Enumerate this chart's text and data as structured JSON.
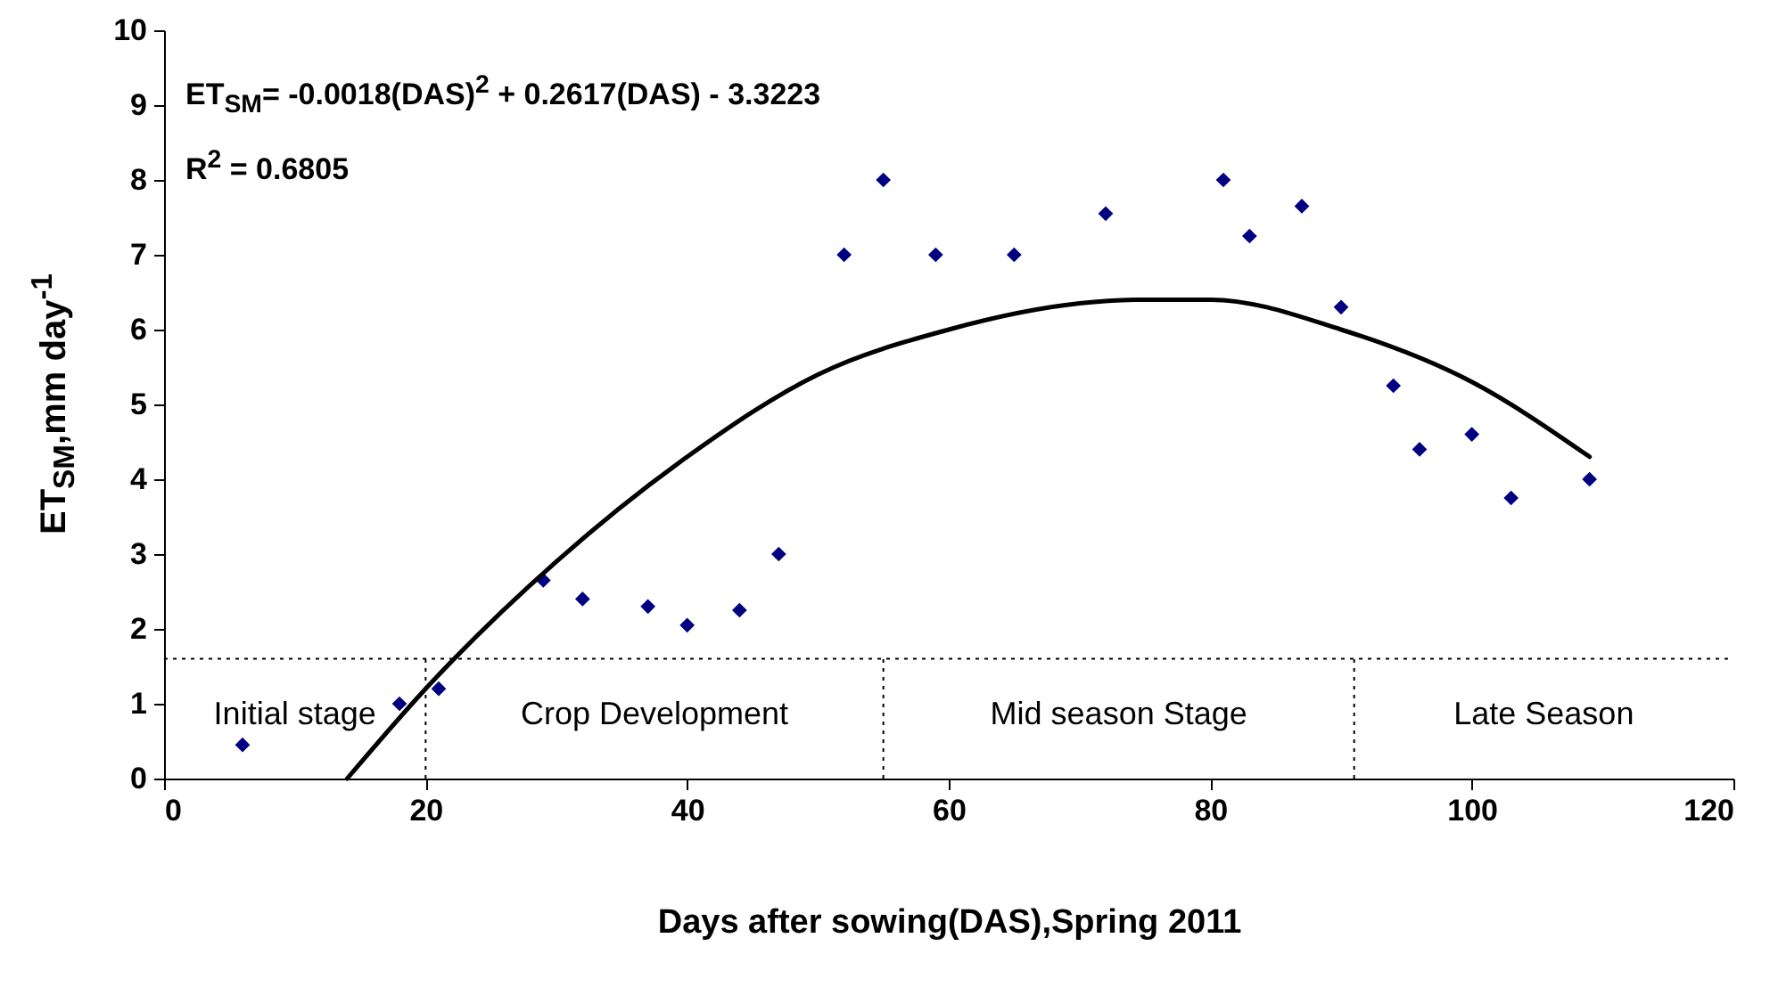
{
  "chart_data": {
    "type": "scatter",
    "xlabel": "Days after sowing(DAS),Spring 2011",
    "ylabel": "ET$_{SM}$,mm day$^{-1}$",
    "xlim": [
      0,
      120
    ],
    "xticks": [
      0,
      20,
      40,
      60,
      80,
      100,
      120
    ],
    "ylim": [
      0,
      10
    ],
    "yticks": [
      0,
      1,
      2,
      3,
      4,
      5,
      6,
      7,
      8,
      9,
      10
    ],
    "grid": false,
    "series": [
      {
        "type": "scatter",
        "color": "#000080",
        "marker": "diamond",
        "x": [
          6,
          18,
          21,
          29,
          32,
          37,
          40,
          44,
          47,
          52,
          55,
          59,
          65,
          72,
          81,
          83,
          87,
          90,
          94,
          96,
          100,
          103,
          109
        ],
        "values": [
          0.45,
          1.0,
          1.2,
          2.65,
          2.4,
          2.3,
          2.05,
          2.25,
          3.0,
          7.0,
          8.0,
          7.0,
          7.0,
          7.55,
          8.0,
          7.25,
          7.65,
          6.3,
          5.25,
          4.4,
          4.6,
          3.75,
          4.0
        ]
      },
      {
        "type": "line",
        "color": "#000000",
        "x": [
          14,
          20,
          30,
          40,
          50,
          60,
          70,
          75,
          80,
          90,
          100,
          109
        ],
        "values": [
          0,
          1.2,
          2.9,
          4.3,
          5.4,
          6.0,
          6.35,
          6.4,
          6.4,
          6.0,
          5.3,
          4.3
        ]
      }
    ],
    "ref_lines": [
      {
        "axis": "y",
        "value": 1.6,
        "line_style": "dotted"
      },
      {
        "axis": "x",
        "value": 20,
        "line_style": "dotted"
      },
      {
        "axis": "x",
        "value": 55,
        "line_style": "dotted"
      },
      {
        "axis": "x",
        "value": 91,
        "line_style": "dotted"
      }
    ],
    "annotations": [
      "ET$_{SM}$= -0.0018(DAS)$^{2}$ + 0.2617(DAS) - 3.3223",
      "R$^{2}$ = 0.6805",
      "Initial stage",
      "Crop Development",
      "Mid season Stage",
      "Late Season"
    ]
  }
}
